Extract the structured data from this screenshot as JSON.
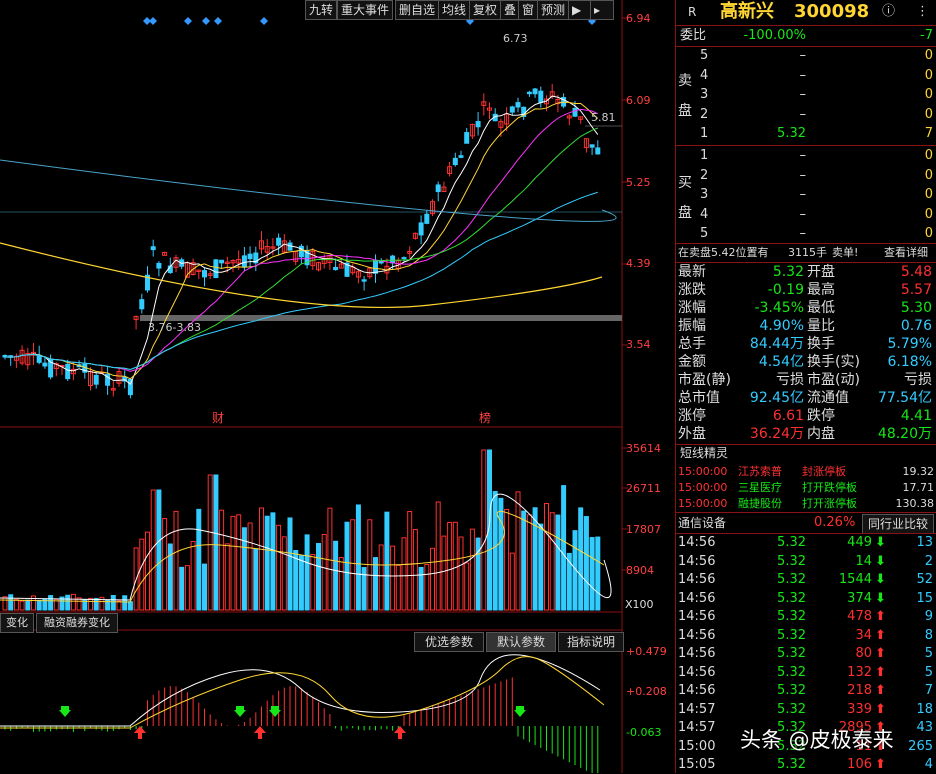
{
  "toolbar": {
    "items": [
      "九转",
      "重大事件",
      "删自选",
      "均线",
      "复权",
      "叠",
      "窗",
      "预测"
    ],
    "icon": "play-icon"
  },
  "kline": {
    "y_ticks": [
      "6.94",
      "6.09",
      "5.25",
      "4.39",
      "3.54"
    ],
    "high_label": "6.73",
    "ma_label": "5.81",
    "range_label": "3.76-3.83",
    "markers": [
      "财",
      "榜"
    ]
  },
  "volume": {
    "y_ticks": [
      "35614",
      "26711",
      "17807",
      "8904"
    ],
    "unit": "X100"
  },
  "indicator": {
    "tabs": [
      "变化",
      "融资融券变化"
    ],
    "buttons": [
      "优选参数",
      "默认参数",
      "指标说明"
    ],
    "y_ticks": [
      "+0.479",
      "+0.208",
      "-0.063"
    ]
  },
  "quote": {
    "header": {
      "badge": "R",
      "name": "高新兴",
      "code": "300098",
      "info_icon": "info-icon",
      "menu_icon": "menu-dots-icon"
    },
    "weibi": {
      "label": "委比",
      "pct": "-100.00%",
      "val": "-7"
    },
    "sell_label": [
      "卖",
      "盘"
    ],
    "buy_label": [
      "买",
      "盘"
    ],
    "sell": [
      {
        "lv": "5",
        "price": "–",
        "vol": "0"
      },
      {
        "lv": "4",
        "price": "–",
        "vol": "0"
      },
      {
        "lv": "3",
        "price": "–",
        "vol": "0"
      },
      {
        "lv": "2",
        "price": "–",
        "vol": "0"
      },
      {
        "lv": "1",
        "price": "5.32",
        "vol": "7"
      }
    ],
    "buy": [
      {
        "lv": "1",
        "price": "–",
        "vol": "0"
      },
      {
        "lv": "2",
        "price": "–",
        "vol": "0"
      },
      {
        "lv": "3",
        "price": "–",
        "vol": "0"
      },
      {
        "lv": "4",
        "price": "–",
        "vol": "0"
      },
      {
        "lv": "5",
        "price": "–",
        "vol": "0"
      }
    ],
    "notice": {
      "prefix": "在卖盘5.42位置有",
      "amount": "3115手",
      "action": "卖单!",
      "detail": "查看详细"
    },
    "stats": [
      [
        "最新",
        "5.32",
        "开盘",
        "5.48"
      ],
      [
        "涨跌",
        "-0.19",
        "最高",
        "5.57"
      ],
      [
        "涨幅",
        "-3.45%",
        "最低",
        "5.30"
      ],
      [
        "振幅",
        "4.90%",
        "量比",
        "0.76"
      ],
      [
        "总手",
        "84.44万",
        "换手",
        "5.79%"
      ],
      [
        "金额",
        "4.54亿",
        "换手(实)",
        "6.18%"
      ],
      [
        "市盈(静)",
        "亏损",
        "市盈(动)",
        "亏损"
      ],
      [
        "总市值",
        "92.45亿",
        "流通值",
        "77.54亿"
      ],
      [
        "涨停",
        "6.61",
        "跌停",
        "4.41"
      ],
      [
        "外盘",
        "36.24万",
        "内盘",
        "48.20万"
      ]
    ],
    "spirit": {
      "title": "短线精灵",
      "rows": [
        {
          "time": "15:00:00",
          "name": "江苏索普",
          "event": "封涨停板",
          "val": "19.32"
        },
        {
          "time": "15:00:00",
          "name": "三星医疗",
          "event": "打开跌停板",
          "val": "17.71"
        },
        {
          "time": "15:00:00",
          "name": "融捷股份",
          "event": "打开涨停板",
          "val": "130.38"
        }
      ]
    },
    "industry": {
      "name": "通信设备",
      "pct": "0.26%",
      "button": "同行业比较"
    },
    "ticks": [
      {
        "t": "14:56",
        "p": "5.32",
        "v": "449",
        "d": "down",
        "n": "13"
      },
      {
        "t": "14:56",
        "p": "5.32",
        "v": "14",
        "d": "down",
        "n": "2"
      },
      {
        "t": "14:56",
        "p": "5.32",
        "v": "1544",
        "d": "down",
        "n": "52"
      },
      {
        "t": "14:56",
        "p": "5.32",
        "v": "374",
        "d": "down",
        "n": "15"
      },
      {
        "t": "14:56",
        "p": "5.32",
        "v": "478",
        "d": "up",
        "n": "9"
      },
      {
        "t": "14:56",
        "p": "5.32",
        "v": "34",
        "d": "up",
        "n": "8"
      },
      {
        "t": "14:56",
        "p": "5.32",
        "v": "80",
        "d": "up",
        "n": "5"
      },
      {
        "t": "14:56",
        "p": "5.32",
        "v": "132",
        "d": "up",
        "n": "5"
      },
      {
        "t": "14:56",
        "p": "5.32",
        "v": "218",
        "d": "up",
        "n": "7"
      },
      {
        "t": "14:57",
        "p": "5.32",
        "v": "339",
        "d": "up",
        "n": "18"
      },
      {
        "t": "14:57",
        "p": "5.32",
        "v": "2895",
        "d": "up",
        "n": "43"
      },
      {
        "t": "15:00",
        "p": "5.32",
        "v": "11",
        "d": "up",
        "n": "265"
      },
      {
        "t": "15:05",
        "p": "5.32",
        "v": "106",
        "d": "up",
        "n": "4"
      }
    ]
  },
  "watermark": "头条 @皮极泰来",
  "colors": {
    "up": "#ff3030",
    "down": "#17e617",
    "bg": "#000000",
    "grid": "#8a1212"
  }
}
